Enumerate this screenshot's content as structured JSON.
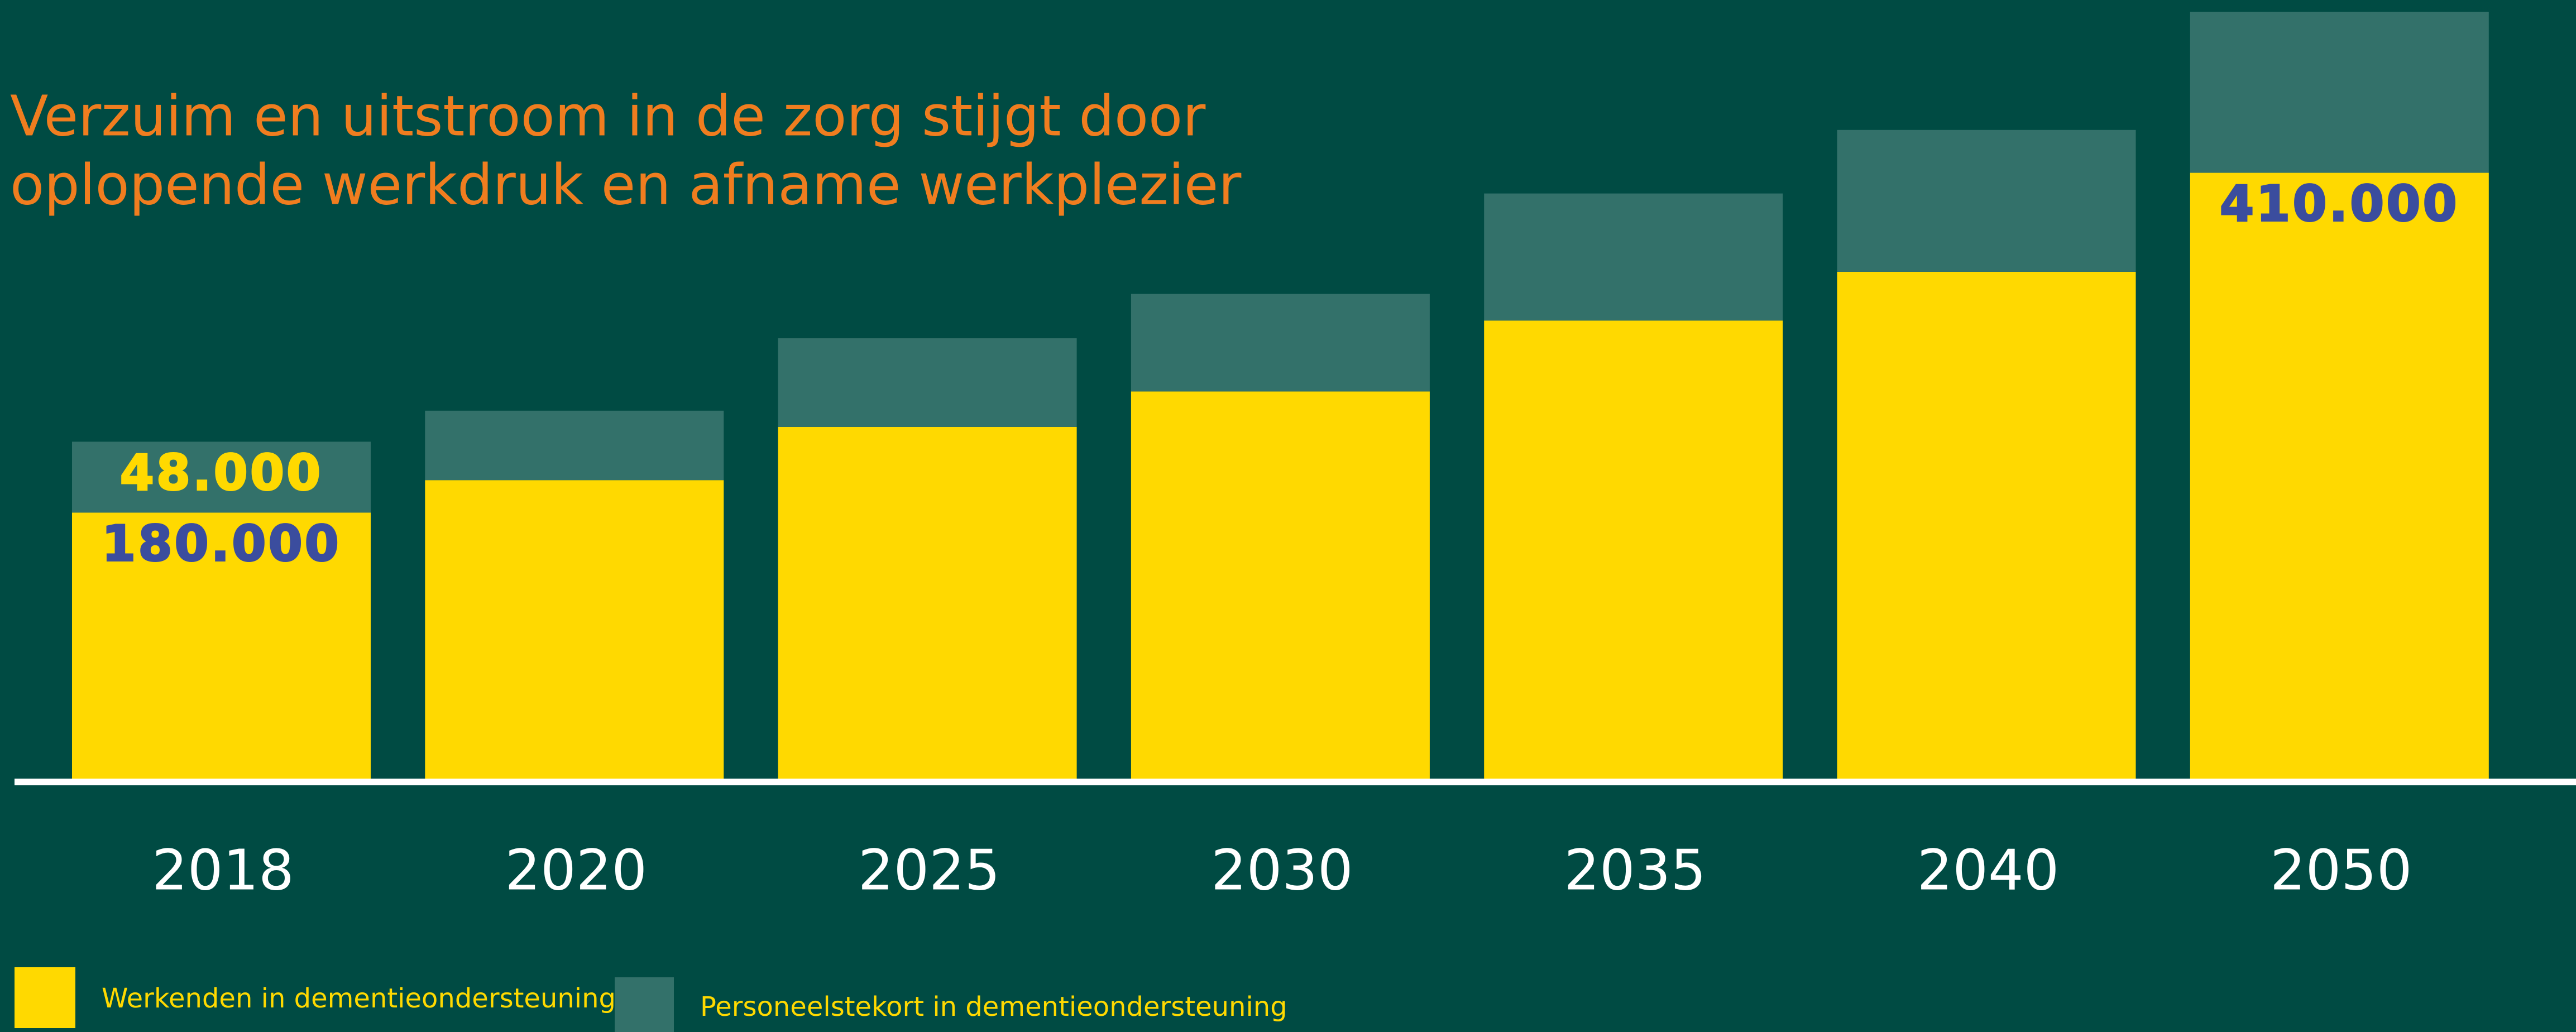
{
  "chart_data": {
    "type": "stacked_bar",
    "title_lines": [
      "Verzuim en uitstroom in de zorg stijgt door",
      "oplopende werkdruk en afname werkplezier"
    ],
    "categories": [
      "2018",
      "2020",
      "2025",
      "2030",
      "2035",
      "2040",
      "2050"
    ],
    "series": [
      {
        "name": "Werkenden in dementieondersteuning",
        "color": "#ffd900",
        "values": [
          180000,
          202000,
          238000,
          262000,
          310000,
          343000,
          410000
        ],
        "value_labels": [
          "180.000",
          null,
          null,
          null,
          null,
          null,
          "410.000"
        ],
        "label_color": "#3b4d9e"
      },
      {
        "name": "Personeelstekort in dementieondersteuning",
        "color": "#33716a",
        "values": [
          48000,
          47000,
          60000,
          66000,
          86000,
          96000,
          109000
        ],
        "value_labels": [
          "48.000",
          null,
          null,
          null,
          null,
          null,
          null
        ],
        "label_color": "#ffd900"
      }
    ]
  }
}
